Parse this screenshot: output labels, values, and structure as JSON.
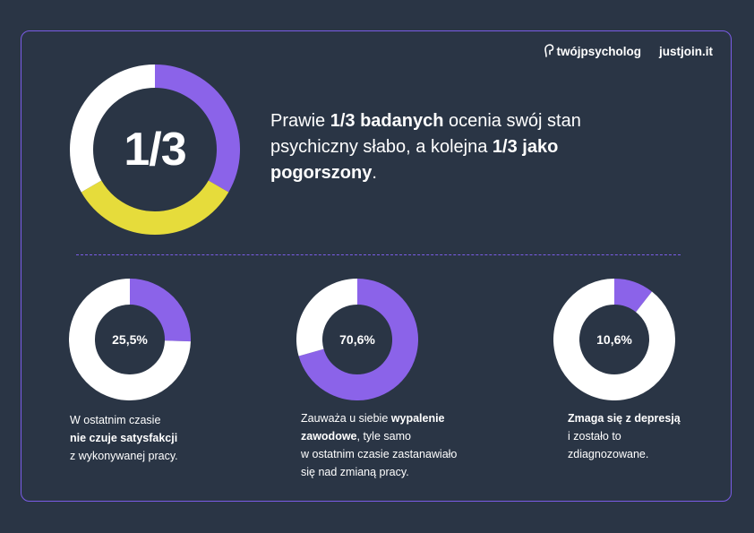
{
  "brands": {
    "primary": "twójpsycholog",
    "secondary": "justjoin.it"
  },
  "headline": {
    "text1": "Prawie ",
    "bold1": "1/3 badanych",
    "text2": " ocenia swój stan psychiczny słabo, a kolejna ",
    "bold2": "1/3 jako pogorszony",
    "text3": "."
  },
  "colors": {
    "background": "#2a3545",
    "frame": "#7a5ce6",
    "purple": "#8b63e9",
    "yellow": "#e6dc3b",
    "white": "#ffffff"
  },
  "chart_data": [
    {
      "type": "pie",
      "label": "1/3",
      "series": [
        {
          "color": "#8b63e9",
          "fraction": 0.3333
        },
        {
          "color": "#e6dc3b",
          "fraction": 0.3333
        },
        {
          "color": "#ffffff",
          "fraction": 0.3334
        }
      ]
    },
    {
      "type": "pie",
      "label": "25,5%",
      "value": 25.5,
      "caption": {
        "line1": "W ostatnim czasie",
        "bold": "nie czuje satysfakcji",
        "line3": "z wykonywanej pracy."
      }
    },
    {
      "type": "pie",
      "label": "70,6%",
      "value": 70.6,
      "caption": {
        "prefix": "Zauważa u siebie ",
        "bold1": "wypalenie",
        "bold2": "zawodowe",
        "rest1": ", tyle samo",
        "line3": "w ostatnim czasie zastanawiało",
        "line4": "się nad zmianą pracy."
      }
    },
    {
      "type": "pie",
      "label": "10,6%",
      "value": 10.6,
      "caption": {
        "bold": "Zmaga się z depresją",
        "line2": "i zostało to",
        "line3": "zdiagnozowane."
      }
    }
  ]
}
